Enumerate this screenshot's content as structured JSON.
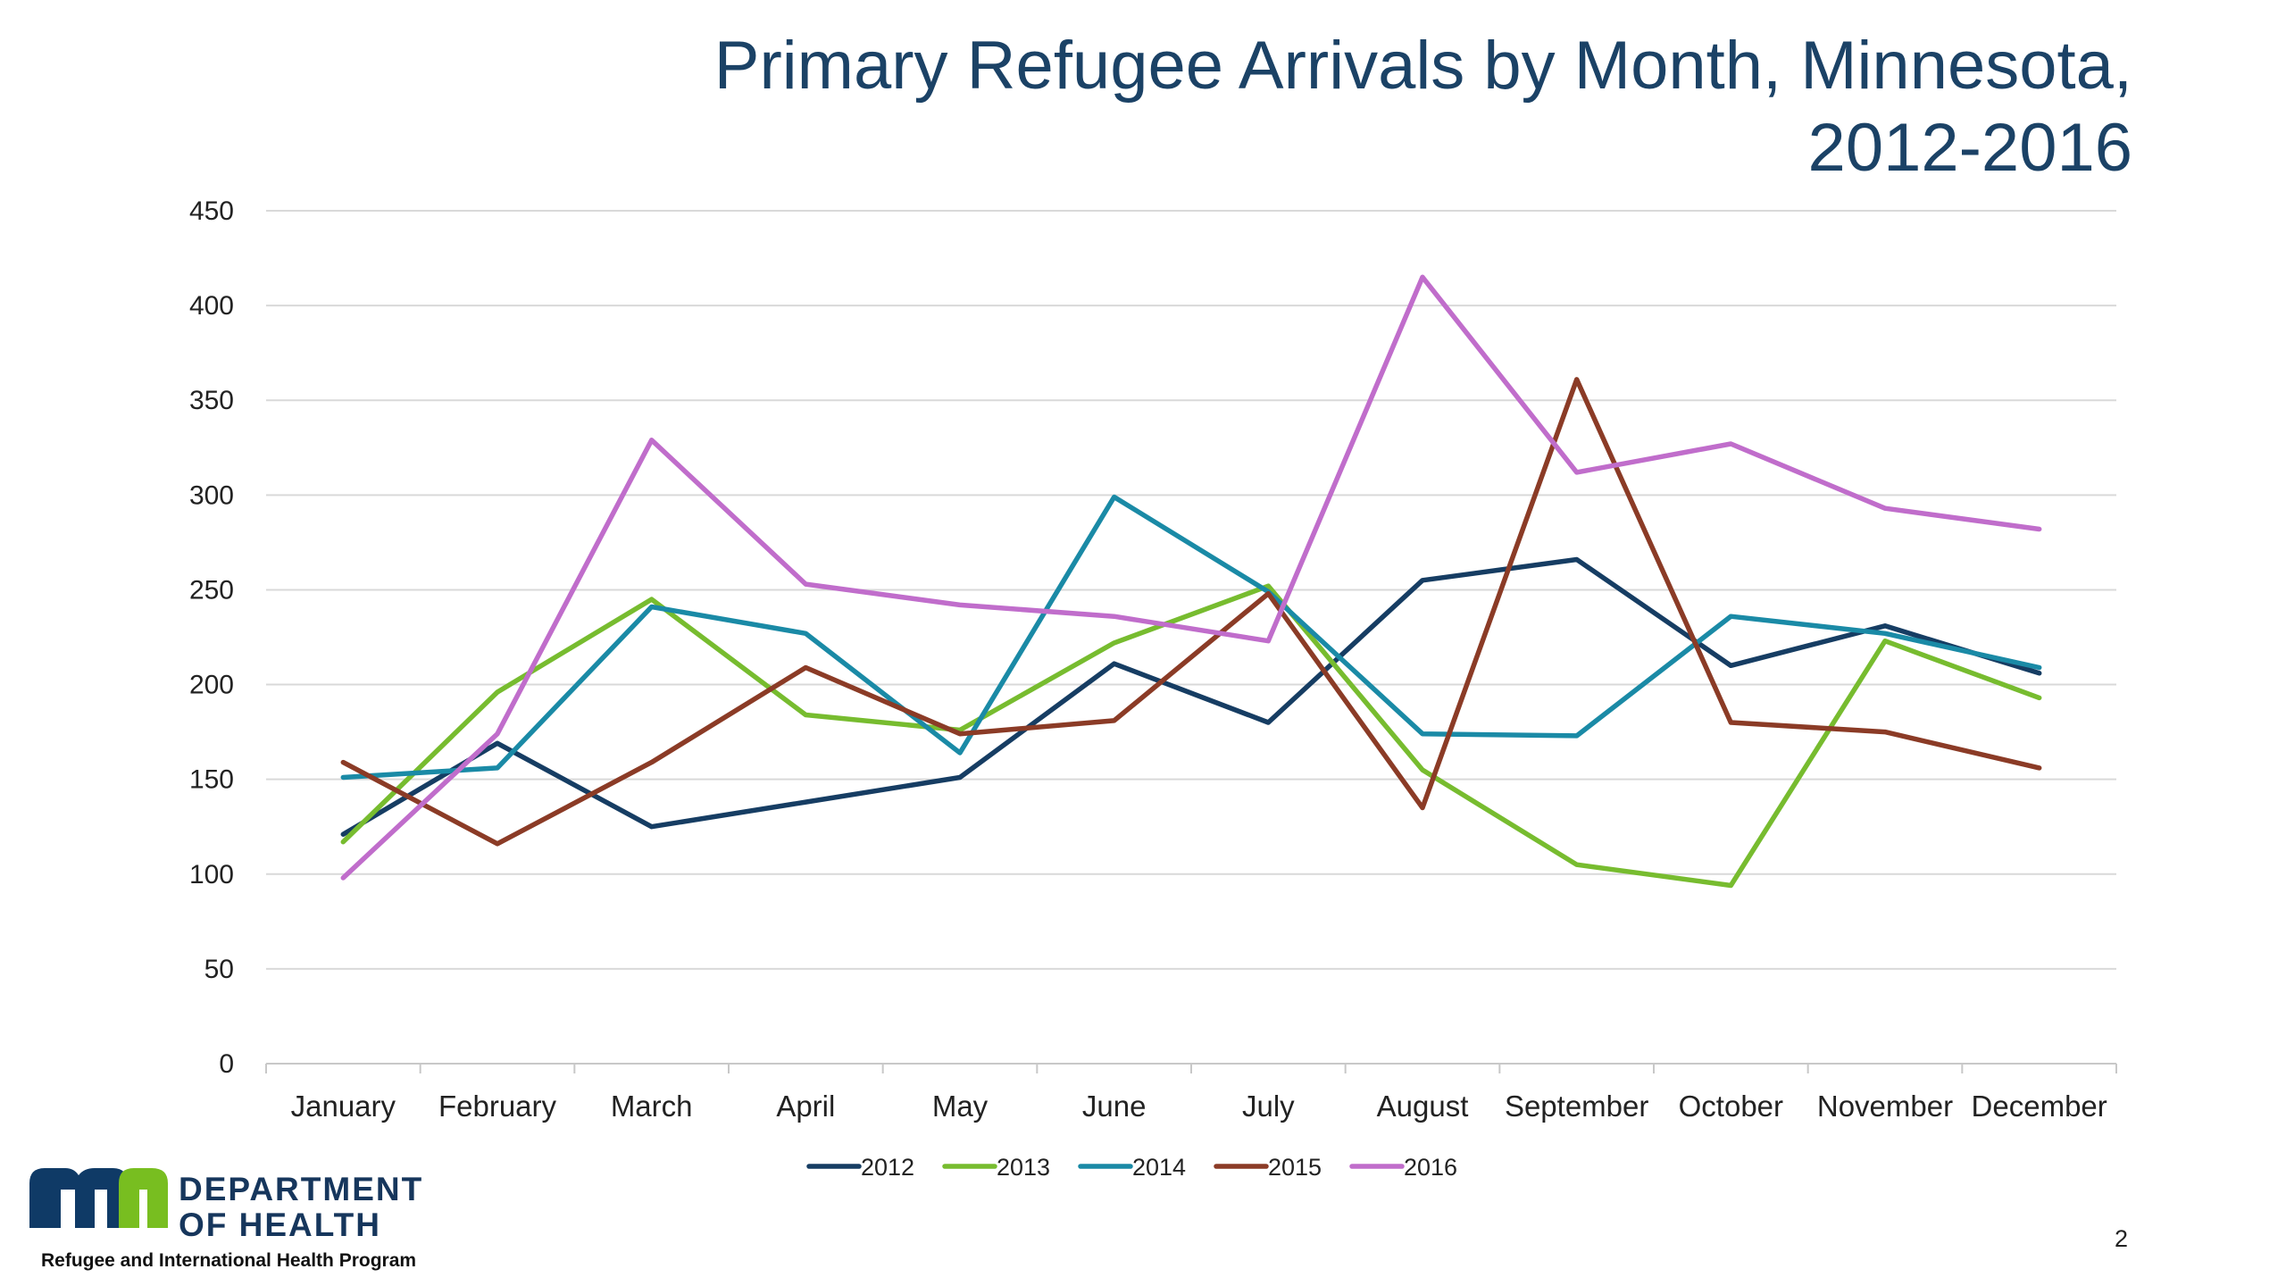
{
  "chart_data": {
    "type": "line",
    "title": "Primary Refugee Arrivals by Month, Minnesota, 2012-2016",
    "title_lines": [
      "Primary Refugee Arrivals by Month, Minnesota,",
      "2012-2016"
    ],
    "xlabel": "",
    "ylabel": "",
    "categories": [
      "January",
      "February",
      "March",
      "April",
      "May",
      "June",
      "July",
      "August",
      "September",
      "October",
      "November",
      "December"
    ],
    "ylim": [
      0,
      450
    ],
    "yticks": [
      0,
      50,
      100,
      150,
      200,
      250,
      300,
      350,
      400,
      450
    ],
    "grid": true,
    "legend": "bottom",
    "series": [
      {
        "name": "2012",
        "color": "#163d63",
        "values": [
          121,
          169,
          125,
          138,
          151,
          211,
          180,
          255,
          266,
          210,
          231,
          206
        ]
      },
      {
        "name": "2013",
        "color": "#77bc2f",
        "values": [
          117,
          196,
          245,
          184,
          176,
          222,
          252,
          155,
          105,
          94,
          223,
          193
        ]
      },
      {
        "name": "2014",
        "color": "#1a8aa6",
        "values": [
          151,
          156,
          241,
          227,
          164,
          299,
          249,
          174,
          173,
          236,
          227,
          209
        ]
      },
      {
        "name": "2015",
        "color": "#8b3b26",
        "values": [
          159,
          116,
          159,
          209,
          174,
          181,
          248,
          135,
          361,
          180,
          175,
          156
        ]
      },
      {
        "name": "2016",
        "color": "#c06dcb",
        "values": [
          98,
          174,
          329,
          253,
          242,
          236,
          223,
          415,
          312,
          327,
          293,
          282
        ]
      }
    ]
  },
  "logo": {
    "line1": "DEPARTMENT",
    "line2": "OF HEALTH",
    "mark_color": "#0f3a66",
    "accent_color": "#78be20"
  },
  "footer": {
    "program": "Refugee and International Health Program",
    "page_number": "2"
  }
}
